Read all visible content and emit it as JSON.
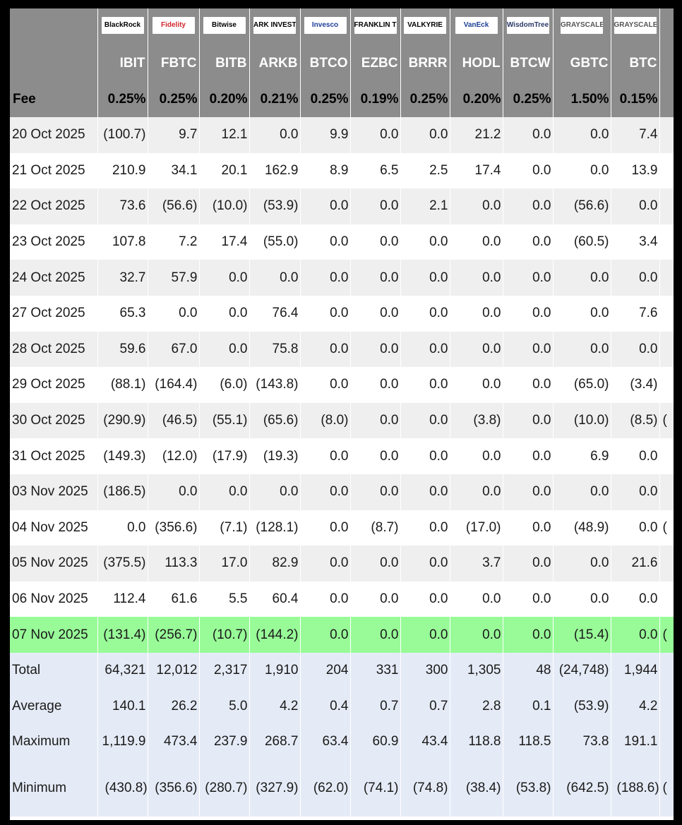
{
  "logos": [
    {
      "name": "BlackRock",
      "color": "#000000"
    },
    {
      "name": "Fidelity",
      "color": "#d2262c"
    },
    {
      "name": "Bitwise",
      "color": "#000000"
    },
    {
      "name": "ARK INVEST",
      "color": "#000000"
    },
    {
      "name": "Invesco",
      "color": "#1f3d99"
    },
    {
      "name": "FRANKLIN TEMPLETON",
      "color": "#000000"
    },
    {
      "name": "VALKYRIE",
      "color": "#000000"
    },
    {
      "name": "VanEck",
      "color": "#1c3f94"
    },
    {
      "name": "WisdomTree",
      "color": "#2b3a67"
    },
    {
      "name": "GRAYSCALE",
      "color": "#555555"
    },
    {
      "name": "GRAYSCALE",
      "color": "#555555"
    }
  ],
  "tickers": [
    "IBIT",
    "FBTC",
    "BITB",
    "ARKB",
    "BTCO",
    "EZBC",
    "BRRR",
    "HODL",
    "BTCW",
    "GBTC",
    "BTC"
  ],
  "fee_label": "Fee",
  "fees": [
    "0.25%",
    "0.25%",
    "0.20%",
    "0.21%",
    "0.25%",
    "0.19%",
    "0.25%",
    "0.20%",
    "0.25%",
    "1.50%",
    "0.15%"
  ],
  "rows": [
    {
      "date": "20 Oct 2025",
      "values": [
        "(100.7)",
        "9.7",
        "12.1",
        "0.0",
        "9.9",
        "0.0",
        "0.0",
        "21.2",
        "0.0",
        "0.0",
        "7.4"
      ],
      "extra": ""
    },
    {
      "date": "21 Oct 2025",
      "values": [
        "210.9",
        "34.1",
        "20.1",
        "162.9",
        "8.9",
        "6.5",
        "2.5",
        "17.4",
        "0.0",
        "0.0",
        "13.9"
      ],
      "extra": ""
    },
    {
      "date": "22 Oct 2025",
      "values": [
        "73.6",
        "(56.6)",
        "(10.0)",
        "(53.9)",
        "0.0",
        "0.0",
        "2.1",
        "0.0",
        "0.0",
        "(56.6)",
        "0.0"
      ],
      "extra": ""
    },
    {
      "date": "23 Oct 2025",
      "values": [
        "107.8",
        "7.2",
        "17.4",
        "(55.0)",
        "0.0",
        "0.0",
        "0.0",
        "0.0",
        "0.0",
        "(60.5)",
        "3.4"
      ],
      "extra": ""
    },
    {
      "date": "24 Oct 2025",
      "values": [
        "32.7",
        "57.9",
        "0.0",
        "0.0",
        "0.0",
        "0.0",
        "0.0",
        "0.0",
        "0.0",
        "0.0",
        "0.0"
      ],
      "extra": ""
    },
    {
      "date": "27 Oct 2025",
      "values": [
        "65.3",
        "0.0",
        "0.0",
        "76.4",
        "0.0",
        "0.0",
        "0.0",
        "0.0",
        "0.0",
        "0.0",
        "7.6"
      ],
      "extra": ""
    },
    {
      "date": "28 Oct 2025",
      "values": [
        "59.6",
        "67.0",
        "0.0",
        "75.8",
        "0.0",
        "0.0",
        "0.0",
        "0.0",
        "0.0",
        "0.0",
        "0.0"
      ],
      "extra": ""
    },
    {
      "date": "29 Oct 2025",
      "values": [
        "(88.1)",
        "(164.4)",
        "(6.0)",
        "(143.8)",
        "0.0",
        "0.0",
        "0.0",
        "0.0",
        "0.0",
        "(65.0)",
        "(3.4)"
      ],
      "extra": ""
    },
    {
      "date": "30 Oct 2025",
      "values": [
        "(290.9)",
        "(46.5)",
        "(55.1)",
        "(65.6)",
        "(8.0)",
        "0.0",
        "0.0",
        "(3.8)",
        "0.0",
        "(10.0)",
        "(8.5)"
      ],
      "extra": "("
    },
    {
      "date": "31 Oct 2025",
      "values": [
        "(149.3)",
        "(12.0)",
        "(17.9)",
        "(19.3)",
        "0.0",
        "0.0",
        "0.0",
        "0.0",
        "0.0",
        "6.9",
        "0.0"
      ],
      "extra": ""
    },
    {
      "date": "03 Nov 2025",
      "values": [
        "(186.5)",
        "0.0",
        "0.0",
        "0.0",
        "0.0",
        "0.0",
        "0.0",
        "0.0",
        "0.0",
        "0.0",
        "0.0"
      ],
      "extra": ""
    },
    {
      "date": "04 Nov 2025",
      "values": [
        "0.0",
        "(356.6)",
        "(7.1)",
        "(128.1)",
        "0.0",
        "(8.7)",
        "0.0",
        "(17.0)",
        "0.0",
        "(48.9)",
        "0.0"
      ],
      "extra": "("
    },
    {
      "date": "05 Nov 2025",
      "values": [
        "(375.5)",
        "113.3",
        "17.0",
        "82.9",
        "0.0",
        "0.0",
        "0.0",
        "3.7",
        "0.0",
        "0.0",
        "21.6"
      ],
      "extra": ""
    },
    {
      "date": "06 Nov 2025",
      "values": [
        "112.4",
        "61.6",
        "5.5",
        "60.4",
        "0.0",
        "0.0",
        "0.0",
        "0.0",
        "0.0",
        "0.0",
        "0.0"
      ],
      "extra": ""
    },
    {
      "date": "07 Nov 2025",
      "values": [
        "(131.4)",
        "(256.7)",
        "(10.7)",
        "(144.2)",
        "0.0",
        "0.0",
        "0.0",
        "0.0",
        "0.0",
        "(15.4)",
        "0.0"
      ],
      "extra": "(",
      "highlight": true
    }
  ],
  "summary": [
    {
      "label": "Total",
      "values": [
        "64,321",
        "12,012",
        "2,317",
        "1,910",
        "204",
        "331",
        "300",
        "1,305",
        "48",
        "(24,748)",
        "1,944"
      ],
      "extra": ""
    },
    {
      "label": "Average",
      "values": [
        "140.1",
        "26.2",
        "5.0",
        "4.2",
        "0.4",
        "0.7",
        "0.7",
        "2.8",
        "0.1",
        "(53.9)",
        "4.2"
      ],
      "extra": ""
    },
    {
      "label": "Maximum",
      "values": [
        "1,119.9",
        "473.4",
        "237.9",
        "268.7",
        "63.4",
        "60.9",
        "43.4",
        "118.8",
        "118.5",
        "73.8",
        "191.1"
      ],
      "extra": ""
    },
    {
      "label": "Minimum",
      "values": [
        "(430.8)",
        "(356.6)",
        "(280.7)",
        "(327.9)",
        "(62.0)",
        "(74.1)",
        "(74.8)",
        "(38.4)",
        "(53.8)",
        "(642.5)",
        "(188.6)"
      ],
      "extra": "(",
      "tall": true
    }
  ]
}
